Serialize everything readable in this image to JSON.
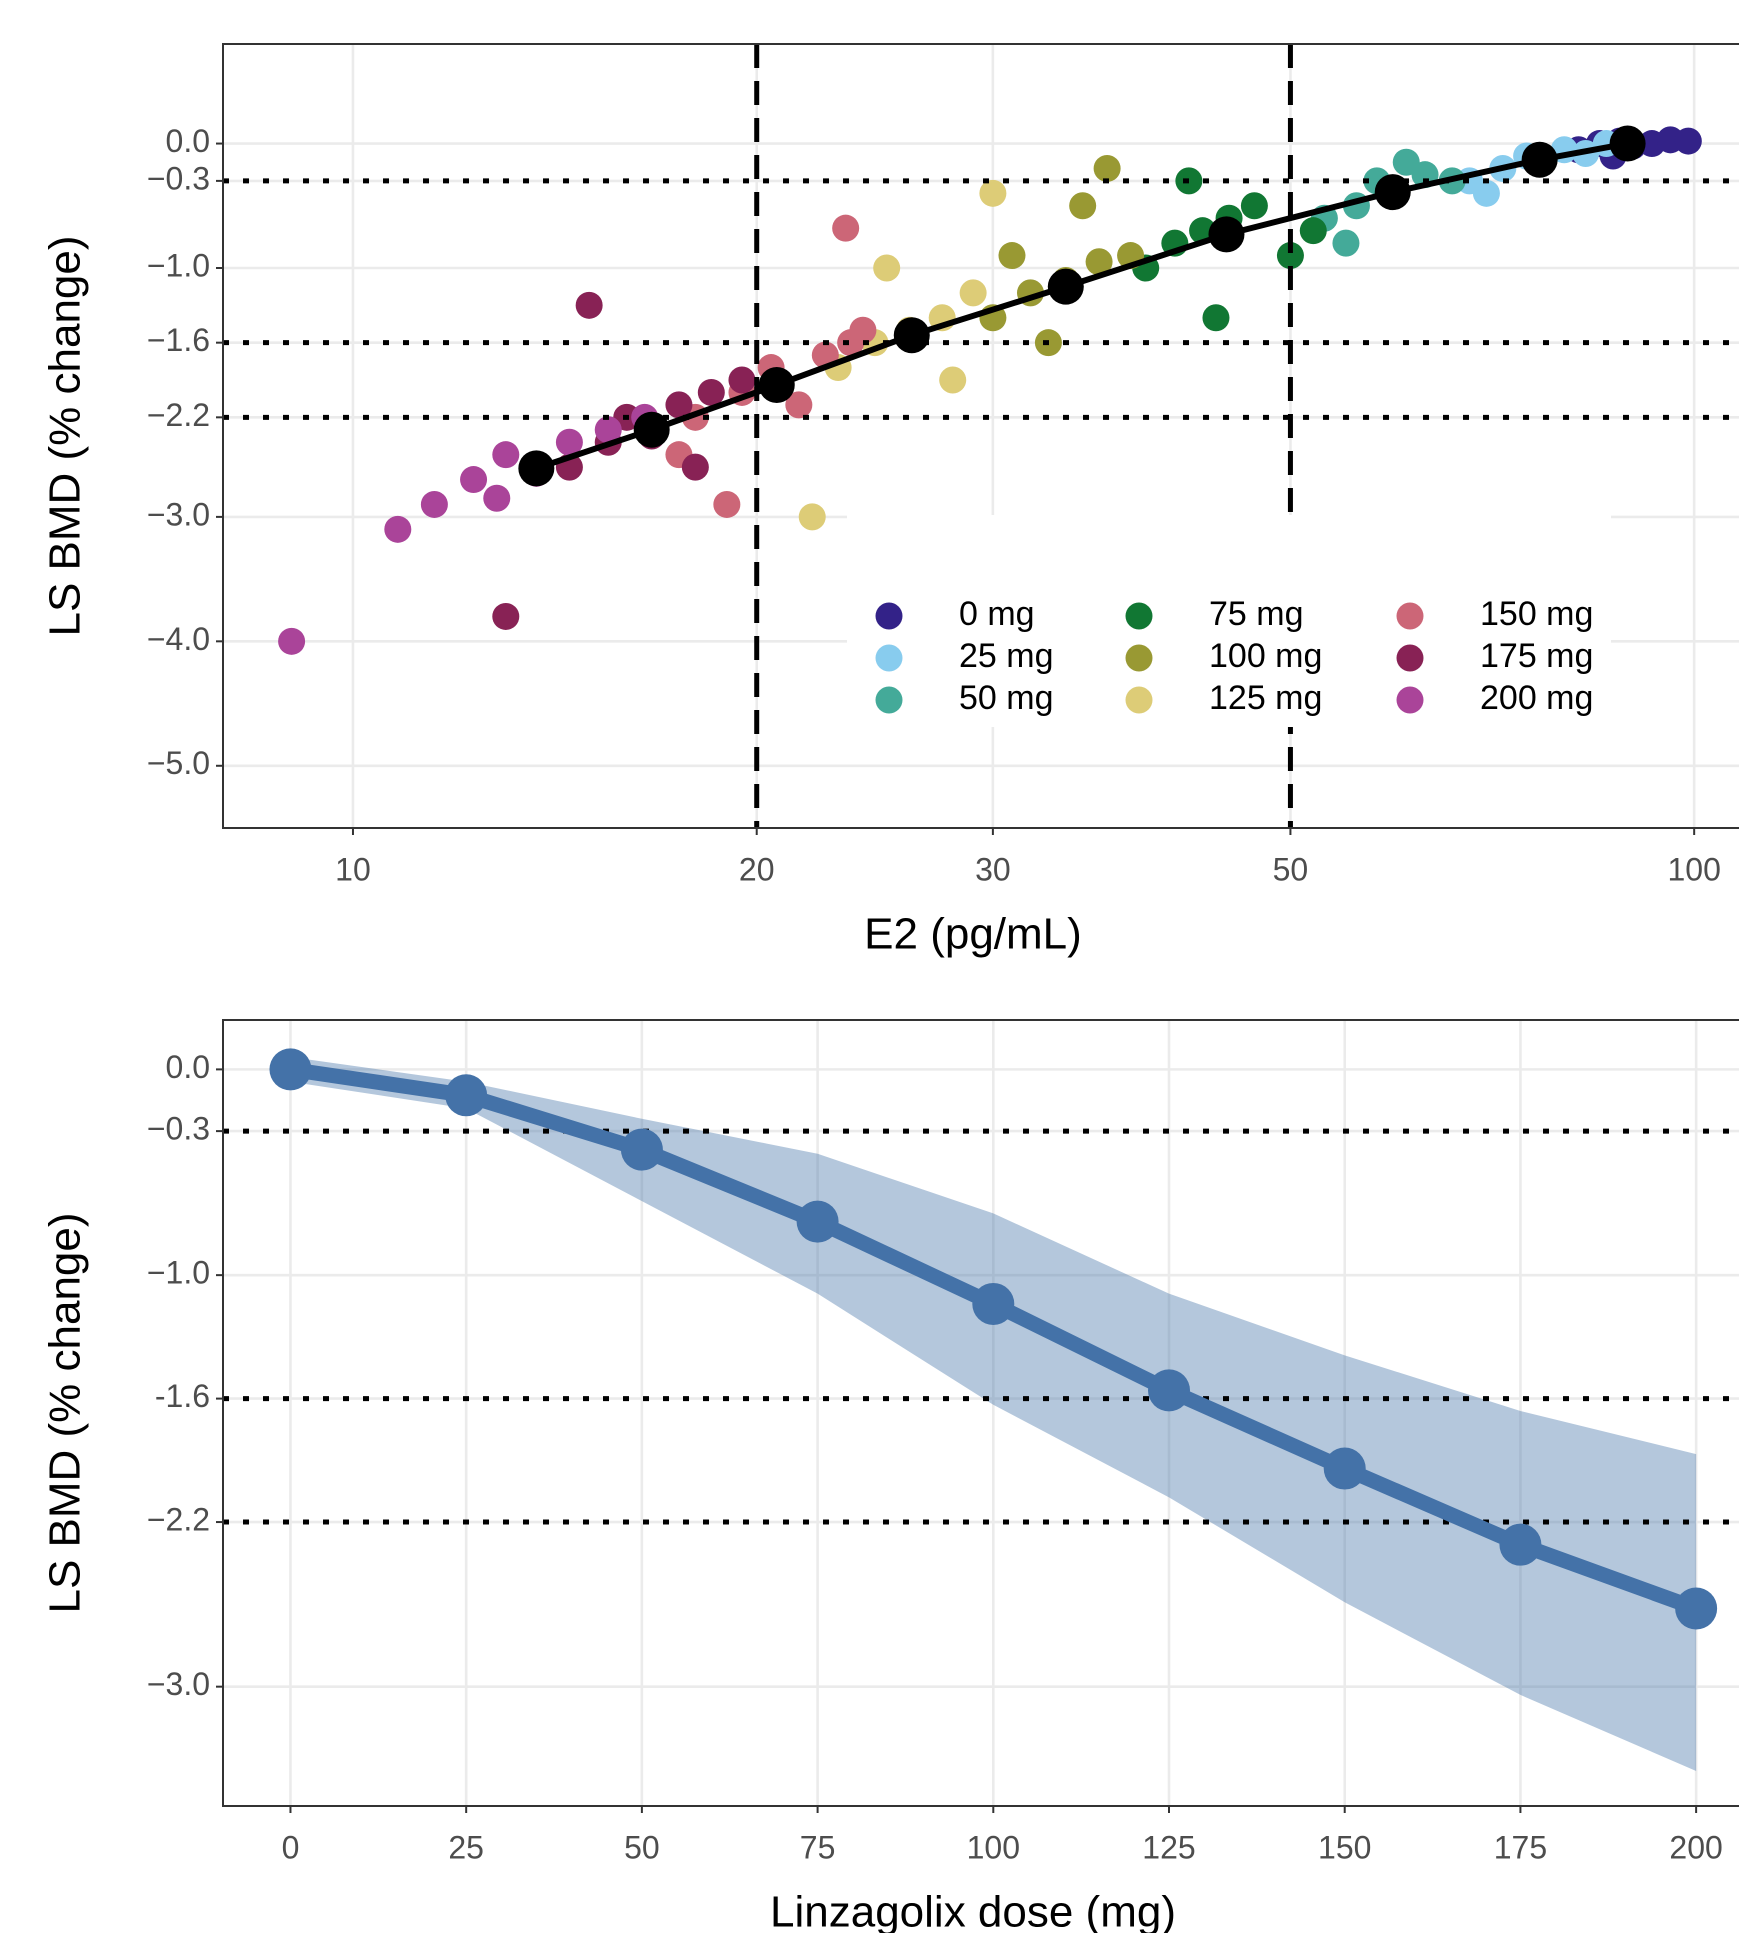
{
  "chart_data": [
    {
      "type": "scatter",
      "x_label": "E2 (pg/mL)",
      "y_label": "LS BMD (% change)",
      "xscale": "log",
      "xlim": [
        8,
        108
      ],
      "xticks": [
        10,
        20,
        30,
        50,
        100
      ],
      "ylim": [
        -5.5,
        0.8
      ],
      "yticks": [
        {
          "value": 0,
          "label": "0.0"
        },
        {
          "value": -0.3,
          "label": "−0.3"
        },
        {
          "value": -1,
          "label": "−1.0"
        },
        {
          "value": -1.6,
          "label": "−1.6"
        },
        {
          "value": -2.2,
          "label": "−2.2"
        },
        {
          "value": -3,
          "label": "−3.0"
        },
        {
          "value": -4,
          "label": "−4.0"
        },
        {
          "value": -5,
          "label": "−5.0"
        }
      ],
      "grid": true,
      "legend": "bottom-right",
      "hlines": [
        -0.3,
        -1.6,
        -2.2
      ],
      "vlines": [
        20,
        50
      ],
      "series": [
        {
          "name": "0 mg",
          "color": "#332288",
          "x": [
            82,
            85,
            88,
            90,
            93,
            96,
            99,
            87
          ],
          "values": [
            -0.05,
            0.0,
            0.02,
            -0.02,
            0.0,
            0.03,
            0.02,
            -0.1
          ]
        },
        {
          "name": "25 mg",
          "color": "#88CCEE",
          "x": [
            68,
            72,
            75,
            77,
            80,
            83,
            70,
            86
          ],
          "values": [
            -0.3,
            -0.2,
            -0.1,
            -0.15,
            -0.05,
            -0.08,
            -0.4,
            0.0
          ]
        },
        {
          "name": "50 mg",
          "color": "#44AA99",
          "x": [
            53,
            56,
            58,
            60,
            63,
            66,
            55,
            61
          ],
          "values": [
            -0.6,
            -0.5,
            -0.3,
            -0.4,
            -0.25,
            -0.3,
            -0.8,
            -0.15
          ]
        },
        {
          "name": "75 mg",
          "color": "#117733",
          "x": [
            39,
            41,
            43,
            45,
            47,
            50,
            42,
            44,
            52
          ],
          "values": [
            -1.0,
            -0.8,
            -0.7,
            -0.6,
            -0.5,
            -0.9,
            -0.3,
            -1.4,
            -0.7
          ]
        },
        {
          "name": "100 mg",
          "color": "#999933",
          "x": [
            30,
            32,
            34,
            36,
            38,
            33,
            35,
            31,
            36.5
          ],
          "values": [
            -1.4,
            -1.2,
            -1.1,
            -0.95,
            -0.9,
            -1.6,
            -0.5,
            -0.9,
            -0.2
          ]
        },
        {
          "name": "125 mg",
          "color": "#DDCC77",
          "x": [
            23,
            24.5,
            26,
            27.5,
            29,
            25,
            28,
            30,
            22
          ],
          "values": [
            -1.8,
            -1.6,
            -1.5,
            -1.4,
            -1.2,
            -1.0,
            -1.9,
            -0.4,
            -3.0
          ]
        },
        {
          "name": "150 mg",
          "color": "#CC6677",
          "x": [
            18,
            19.5,
            20.5,
            21.5,
            22.5,
            23.5,
            17.5,
            24,
            23.3,
            19
          ],
          "values": [
            -2.2,
            -2.0,
            -1.8,
            -2.1,
            -1.7,
            -1.6,
            -2.5,
            -1.5,
            -0.68,
            -2.9
          ]
        },
        {
          "name": "175 mg",
          "color": "#882255",
          "x": [
            14.5,
            15.5,
            16,
            16.7,
            17.5,
            18.5,
            19.5,
            15,
            13,
            18
          ],
          "values": [
            -2.6,
            -2.4,
            -2.2,
            -2.35,
            -2.1,
            -2.0,
            -1.9,
            -1.3,
            -3.8,
            -2.6
          ]
        },
        {
          "name": "200 mg",
          "color": "#AA4499",
          "x": [
            11.5,
            12.3,
            13,
            13.7,
            14.5,
            15.5,
            10.8,
            12.8,
            9,
            16.5
          ],
          "values": [
            -2.9,
            -2.7,
            -2.5,
            -2.65,
            -2.4,
            -2.3,
            -3.1,
            -2.85,
            -4.0,
            -2.2
          ]
        }
      ],
      "mean_line": {
        "color": "#000000",
        "x": [
          13.7,
          16.7,
          20.7,
          26.1,
          34.0,
          44.8,
          59.6,
          76.7,
          89.2
        ],
        "values": [
          -2.61,
          -2.3,
          -1.94,
          -1.54,
          -1.15,
          -0.73,
          -0.39,
          -0.13,
          0.0
        ]
      }
    },
    {
      "type": "line",
      "x_label": "Linzagolix dose (mg)",
      "y_label": "LS BMD (% change)",
      "xlim": [
        -9.6,
        206.1
      ],
      "xticks": [
        0,
        25,
        50,
        75,
        100,
        125,
        150,
        175,
        200
      ],
      "ylim": [
        -3.58,
        0.24
      ],
      "yticks": [
        {
          "value": 0,
          "label": "0.0"
        },
        {
          "value": -0.3,
          "label": "−0.3"
        },
        {
          "value": -1,
          "label": "−1.0"
        },
        {
          "value": -1.6,
          "label": "-1.6"
        },
        {
          "value": -2.2,
          "label": "−2.2"
        },
        {
          "value": -3,
          "label": "−3.0"
        }
      ],
      "grid": true,
      "hlines": [
        -0.3,
        -1.6,
        -2.2
      ],
      "series": [
        {
          "color": "#4472A8",
          "x": [
            0,
            25,
            50,
            75,
            100,
            125,
            150,
            175,
            200
          ],
          "values": [
            0.0,
            -0.126,
            -0.39,
            -0.74,
            -1.14,
            -1.56,
            -1.94,
            -2.31,
            -2.62
          ],
          "upper": [
            0.06,
            -0.06,
            -0.24,
            -0.41,
            -0.7,
            -1.09,
            -1.39,
            -1.66,
            -1.87
          ],
          "lower": [
            -0.06,
            -0.19,
            -0.64,
            -1.09,
            -1.63,
            -2.08,
            -2.59,
            -3.04,
            -3.41
          ]
        }
      ]
    }
  ]
}
